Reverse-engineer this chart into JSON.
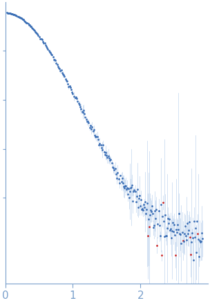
{
  "xlim": [
    0,
    3.0
  ],
  "ylim": [
    -0.15,
    1.0
  ],
  "xlabel_ticks": [
    0,
    1,
    2
  ],
  "dot_color": "#3a6eb5",
  "error_color": "#a8c4e8",
  "outlier_color": "#cc2222",
  "background": "#ffffff",
  "axis_color": "#7aa0cc",
  "tick_color": "#7aa0cc",
  "label_color": "#7aa0cc",
  "label_fontsize": 11,
  "ytick_positions": [
    0.2,
    0.4,
    0.6,
    0.8
  ],
  "figsize": [
    3.04,
    4.37
  ],
  "dpi": 100
}
